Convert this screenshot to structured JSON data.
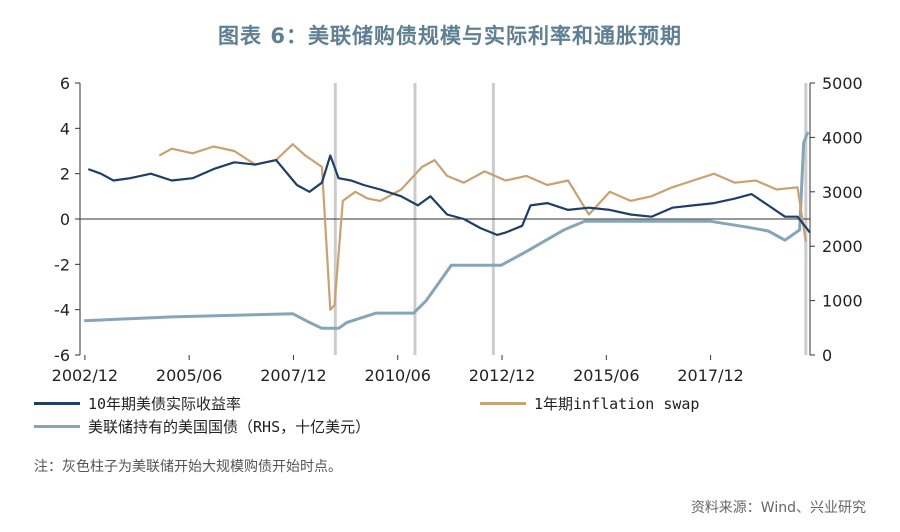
{
  "title": "图表 6：美联储购债规模与实际利率和通胀预期",
  "note": "注：灰色柱子为美联储开始大规模购债开始时点。",
  "source": "资料来源：Wind、兴业研究",
  "chart_data": {
    "type": "line",
    "x_tick_labels": [
      "2002/12",
      "2005/06",
      "2007/12",
      "2010/06",
      "2012/12",
      "2015/06",
      "2017/12"
    ],
    "x_range": [
      2002.8,
      2020.3
    ],
    "x_tick_positions": [
      2002.917,
      2005.417,
      2007.917,
      2010.417,
      2012.917,
      2015.417,
      2017.917
    ],
    "y_left": {
      "range": [
        -6,
        6
      ],
      "ticks": [
        -6,
        -4,
        -2,
        0,
        2,
        4,
        6
      ]
    },
    "y_right": {
      "range": [
        0,
        5000
      ],
      "ticks": [
        0,
        1000,
        2000,
        3000,
        4000,
        5000
      ]
    },
    "grid": false,
    "vlines": [
      2008.92,
      2010.83,
      2012.71,
      2020.2
    ],
    "colors": {
      "real_yield": "#1f3f66",
      "inflation_swap": "#c7a272",
      "treasury": "#86a6b8",
      "vline": "#cccccc"
    },
    "series": [
      {
        "name": "10年期美债实际收益率",
        "axis": "left",
        "x": [
          2003.0,
          2003.3,
          2003.6,
          2004.0,
          2004.5,
          2005.0,
          2005.5,
          2006.0,
          2006.5,
          2007.0,
          2007.5,
          2008.0,
          2008.3,
          2008.6,
          2008.8,
          2009.0,
          2009.3,
          2009.6,
          2010.0,
          2010.5,
          2010.9,
          2011.2,
          2011.6,
          2012.0,
          2012.4,
          2012.8,
          2013.0,
          2013.4,
          2013.6,
          2014.0,
          2014.5,
          2015.0,
          2015.5,
          2016.0,
          2016.5,
          2017.0,
          2017.5,
          2018.0,
          2018.5,
          2018.9,
          2019.3,
          2019.7,
          2020.0,
          2020.3
        ],
        "values": [
          2.2,
          2.0,
          1.7,
          1.8,
          2.0,
          1.7,
          1.8,
          2.2,
          2.5,
          2.4,
          2.6,
          1.5,
          1.2,
          1.6,
          2.8,
          1.8,
          1.7,
          1.5,
          1.3,
          1.0,
          0.6,
          1.0,
          0.2,
          0.0,
          -0.4,
          -0.7,
          -0.6,
          -0.3,
          0.6,
          0.7,
          0.4,
          0.5,
          0.4,
          0.2,
          0.1,
          0.5,
          0.6,
          0.7,
          0.9,
          1.1,
          0.6,
          0.1,
          0.1,
          -0.6
        ]
      },
      {
        "name": "1年期inflation swap",
        "axis": "left",
        "x": [
          2004.7,
          2005.0,
          2005.5,
          2006.0,
          2006.5,
          2007.0,
          2007.5,
          2007.9,
          2008.2,
          2008.6,
          2008.8,
          2008.9,
          2009.1,
          2009.4,
          2009.7,
          2010.0,
          2010.5,
          2011.0,
          2011.3,
          2011.6,
          2012.0,
          2012.5,
          2013.0,
          2013.5,
          2014.0,
          2014.5,
          2015.0,
          2015.5,
          2016.0,
          2016.5,
          2017.0,
          2017.5,
          2018.0,
          2018.5,
          2019.0,
          2019.5,
          2020.0,
          2020.2
        ],
        "values": [
          2.8,
          3.1,
          2.9,
          3.2,
          3.0,
          2.4,
          2.6,
          3.3,
          2.8,
          2.3,
          -4.0,
          -3.8,
          0.8,
          1.2,
          0.9,
          0.8,
          1.3,
          2.3,
          2.6,
          1.9,
          1.6,
          2.1,
          1.7,
          1.9,
          1.5,
          1.7,
          0.2,
          1.2,
          0.8,
          1.0,
          1.4,
          1.7,
          2.0,
          1.6,
          1.7,
          1.3,
          1.4,
          -1.0
        ]
      },
      {
        "name": "美联储持有的美国国债（RHS，十亿美元）",
        "axis": "right",
        "x": [
          2002.9,
          2005.0,
          2007.9,
          2008.3,
          2008.6,
          2009.0,
          2009.2,
          2009.9,
          2010.8,
          2011.1,
          2011.7,
          2012.9,
          2013.5,
          2014.4,
          2014.9,
          2017.9,
          2018.8,
          2019.3,
          2019.7,
          2020.05,
          2020.15,
          2020.25
        ],
        "values": [
          630,
          700,
          760,
          600,
          490,
          490,
          600,
          770,
          770,
          1000,
          1650,
          1650,
          1900,
          2300,
          2460,
          2460,
          2350,
          2280,
          2110,
          2300,
          3900,
          4100
        ]
      }
    ]
  }
}
